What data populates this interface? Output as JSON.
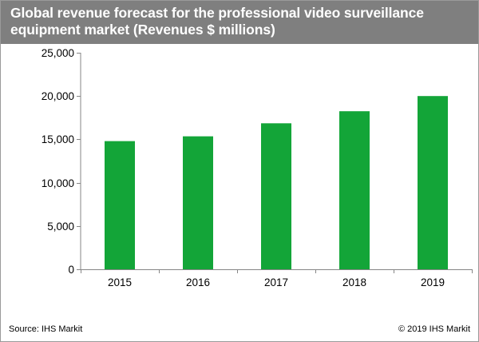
{
  "header": {
    "title": "Global revenue forecast for the professional video surveillance equipment market (Revenues $ millions)"
  },
  "footer": {
    "source": "Source: IHS Markit",
    "copyright": "© 2019 IHS Markit"
  },
  "colors": {
    "bar": "#13a538",
    "title_bg": "#7f7f7f"
  },
  "chart_data": {
    "type": "bar",
    "title": "Global revenue forecast for the professional video surveillance equipment market (Revenues $ millions)",
    "categories": [
      "2015",
      "2016",
      "2017",
      "2018",
      "2019"
    ],
    "values": [
      14800,
      15350,
      16850,
      18250,
      20000
    ],
    "ylim": [
      0,
      25000
    ],
    "yticks": [
      0,
      5000,
      10000,
      15000,
      20000,
      25000
    ],
    "ytick_labels": [
      "0",
      "5,000",
      "10,000",
      "15,000",
      "20,000",
      "25,000"
    ],
    "xlabel": "",
    "ylabel": "",
    "grid": false,
    "legend": "none"
  }
}
